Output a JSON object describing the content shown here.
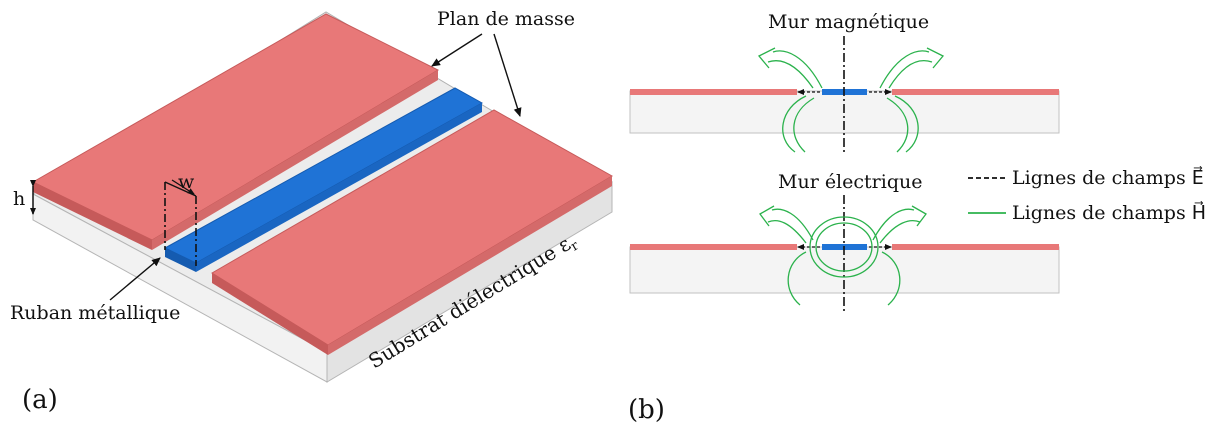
{
  "panel_a": {
    "caption": "(a)",
    "ground_plane_label": "Plan de masse",
    "strip_label": "Ruban métallique",
    "substrate_label": "Substrat diélectrique ε",
    "substrate_symbol_sub": "r",
    "height_label": "h",
    "width_label": "w"
  },
  "panel_b": {
    "caption": "(b)",
    "magnetic_wall_label": "Mur magnétique",
    "electric_wall_label": "Mur électrique",
    "legend": [
      {
        "text": "Lignes de champs E⃗",
        "style": "dashed",
        "color": "#111111"
      },
      {
        "text": "Lignes de champs H⃗",
        "style": "solid",
        "color": "#2bb24c"
      }
    ]
  },
  "colors": {
    "ground": "#e87878",
    "ground_side": "#c65a5a",
    "strip": "#1f73d6",
    "substrate_top": "#ececec",
    "substrate_side": "#f4f4f4",
    "field_h": "#2bb24c"
  }
}
